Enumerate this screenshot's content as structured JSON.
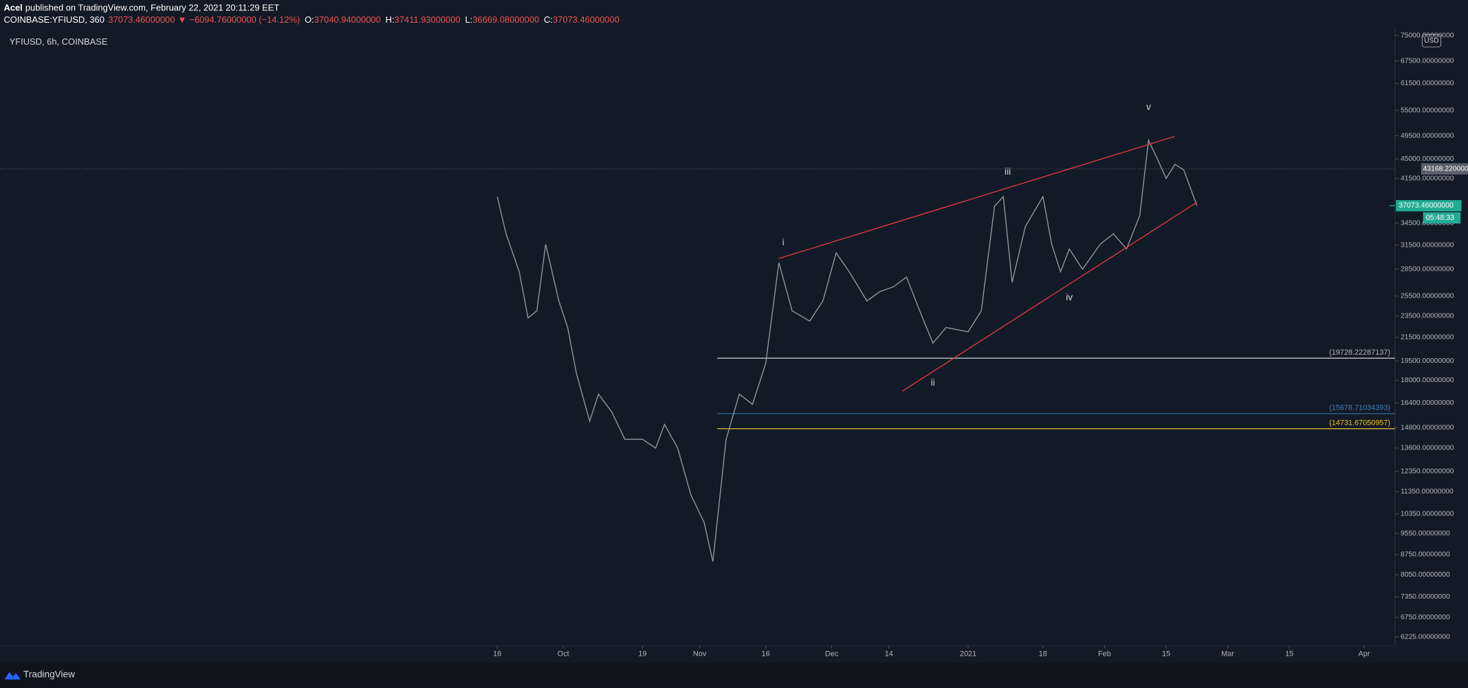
{
  "header": {
    "author": "Acel",
    "published": "published on TradingView.com, February 22, 2021 20:11:29 EET",
    "symbol": "COINBASE:YFIUSD, 360",
    "last": "37073.46000000",
    "arrow": "▼",
    "change": "−6094.76000000 (−14.12%)",
    "ohlc": [
      {
        "label": "O:",
        "value": "37040.94000000"
      },
      {
        "label": "H:",
        "value": "37411.93000000"
      },
      {
        "label": "L:",
        "value": "36669.08000000"
      },
      {
        "label": "C:",
        "value": "37073.46000000"
      }
    ]
  },
  "footer": {
    "brand": "TradingView"
  },
  "chart_data": {
    "type": "line",
    "legend_text": "YFIUSD, 6h, COINBASE",
    "currency": "USD",
    "log_scale": true,
    "grid": false,
    "xlim": [
      "2020-05-26",
      "2021-04-08"
    ],
    "ylim": [
      6000,
      77000
    ],
    "xticks": [
      {
        "value": "2020-09-16",
        "label": "16"
      },
      {
        "value": "2020-10-01",
        "label": "Oct"
      },
      {
        "value": "2020-10-19",
        "label": "19"
      },
      {
        "value": "2020-11-01",
        "label": "Nov"
      },
      {
        "value": "2020-11-16",
        "label": "16"
      },
      {
        "value": "2020-12-01",
        "label": "Dec"
      },
      {
        "value": "2020-12-14",
        "label": "14"
      },
      {
        "value": "2021-01-01",
        "label": "2021"
      },
      {
        "value": "2021-01-18",
        "label": "18"
      },
      {
        "value": "2021-02-01",
        "label": "Feb"
      },
      {
        "value": "2021-02-15",
        "label": "15"
      },
      {
        "value": "2021-03-01",
        "label": "Mar"
      },
      {
        "value": "2021-03-15",
        "label": "15"
      },
      {
        "value": "2021-04-01",
        "label": "Apr"
      }
    ],
    "yticks": [
      {
        "value": 75000,
        "label": "75000.00000000"
      },
      {
        "value": 67500,
        "label": "67500.00000000"
      },
      {
        "value": 61500,
        "label": "61500.00000000"
      },
      {
        "value": 55000,
        "label": "55000.00000000"
      },
      {
        "value": 49500,
        "label": "49500.00000000"
      },
      {
        "value": 45000,
        "label": "45000.00000000"
      },
      {
        "value": 41500,
        "label": "41500.00000000"
      },
      {
        "value": 34500,
        "label": "34500.00000000"
      },
      {
        "value": 31500,
        "label": "31500.00000000"
      },
      {
        "value": 28500,
        "label": "28500.00000000"
      },
      {
        "value": 25500,
        "label": "25500.00000000"
      },
      {
        "value": 23500,
        "label": "23500.00000000"
      },
      {
        "value": 21500,
        "label": "21500.00000000"
      },
      {
        "value": 19500,
        "label": "19500.00000000"
      },
      {
        "value": 18000,
        "label": "18000.00000000"
      },
      {
        "value": 16400,
        "label": "16400.00000000"
      },
      {
        "value": 14800,
        "label": "14800.00000000"
      },
      {
        "value": 13600,
        "label": "13600.00000000"
      },
      {
        "value": 12350,
        "label": "12350.00000000"
      },
      {
        "value": 11350,
        "label": "11350.00000000"
      },
      {
        "value": 10350,
        "label": "10350.00000000"
      },
      {
        "value": 9550,
        "label": "9550.00000000"
      },
      {
        "value": 8750,
        "label": "8750.00000000"
      },
      {
        "value": 8050,
        "label": "8050.00000000"
      },
      {
        "value": 7350,
        "label": "7350.00000000"
      },
      {
        "value": 6750,
        "label": "6750.00000000"
      },
      {
        "value": 6225,
        "label": "6225.00000000"
      }
    ],
    "x": [
      "2020-09-16",
      "2020-09-18",
      "2020-09-21",
      "2020-09-23",
      "2020-09-25",
      "2020-09-27",
      "2020-09-30",
      "2020-10-02",
      "2020-10-04",
      "2020-10-07",
      "2020-10-09",
      "2020-10-12",
      "2020-10-15",
      "2020-10-19",
      "2020-10-22",
      "2020-10-24",
      "2020-10-27",
      "2020-10-30",
      "2020-11-02",
      "2020-11-04",
      "2020-11-07",
      "2020-11-10",
      "2020-11-13",
      "2020-11-16",
      "2020-11-19",
      "2020-11-22",
      "2020-11-26",
      "2020-11-29",
      "2020-12-02",
      "2020-12-05",
      "2020-12-09",
      "2020-12-12",
      "2020-12-15",
      "2020-12-18",
      "2020-12-21",
      "2020-12-24",
      "2020-12-27",
      "2021-01-01",
      "2021-01-04",
      "2021-01-07",
      "2021-01-09",
      "2021-01-11",
      "2021-01-14",
      "2021-01-18",
      "2021-01-20",
      "2021-01-22",
      "2021-01-24",
      "2021-01-27",
      "2021-01-31",
      "2021-02-03",
      "2021-02-06",
      "2021-02-09",
      "2021-02-11",
      "2021-02-13",
      "2021-02-15",
      "2021-02-17",
      "2021-02-19",
      "2021-02-22"
    ],
    "series": [
      {
        "name": "YFIUSD",
        "color": "#9598a1",
        "values": [
          38500,
          33000,
          28200,
          23300,
          24000,
          31600,
          25000,
          22400,
          18500,
          15200,
          17000,
          15800,
          14100,
          14100,
          13600,
          15000,
          13600,
          11200,
          10000,
          8500,
          14100,
          17000,
          16300,
          19300,
          29300,
          24000,
          23000,
          25000,
          30500,
          28200,
          25000,
          26000,
          26500,
          27600,
          24000,
          21000,
          22400,
          22000,
          24000,
          37000,
          38500,
          27000,
          34000,
          38500,
          31600,
          28200,
          31000,
          28500,
          31600,
          33000,
          31000,
          35600,
          48600,
          45000,
          41500,
          44000,
          43000,
          37073.46
        ]
      }
    ],
    "trend_lines": [
      {
        "x": [
          "2020-11-19",
          "2021-02-17"
        ],
        "y": [
          29800,
          49400
        ],
        "color": "#e03a3e"
      },
      {
        "x": [
          "2020-12-17",
          "2021-02-22"
        ],
        "y": [
          17200,
          37600
        ],
        "color": "#e03a3e"
      }
    ],
    "levels": [
      {
        "value": 19728.22287137,
        "value_label": "(19728.22287137)",
        "start": "2020-11-05",
        "color": "#d1d4dc",
        "label_color": "#b2b5be"
      },
      {
        "value": 15678.71034393,
        "value_label": "(15678.71034393)",
        "start": "2020-11-05",
        "color": "#2c6e99",
        "label_color": "#3f7fb0"
      },
      {
        "value": 14731.67050957,
        "value_label": "(14731.67050957)",
        "start": "2020-11-05",
        "color": "#e8c13a",
        "label_color": "#f0c419"
      }
    ],
    "wave_labels": [
      {
        "text": "i",
        "x": "2020-11-20",
        "y": 31800
      },
      {
        "text": "ii",
        "x": "2020-12-24",
        "y": 17800
      },
      {
        "text": "iii",
        "x": "2021-01-10",
        "y": 42600
      },
      {
        "text": "iv",
        "x": "2021-01-24",
        "y": 25300
      },
      {
        "text": "v",
        "x": "2021-02-11",
        "y": 55700
      }
    ],
    "prev_close": {
      "value": 43168.22,
      "label": "43168.22000000"
    },
    "last_price": {
      "value": 37073.46,
      "label": "37073.46000000",
      "color": "#22ab94"
    },
    "countdown": "05:48:33"
  }
}
